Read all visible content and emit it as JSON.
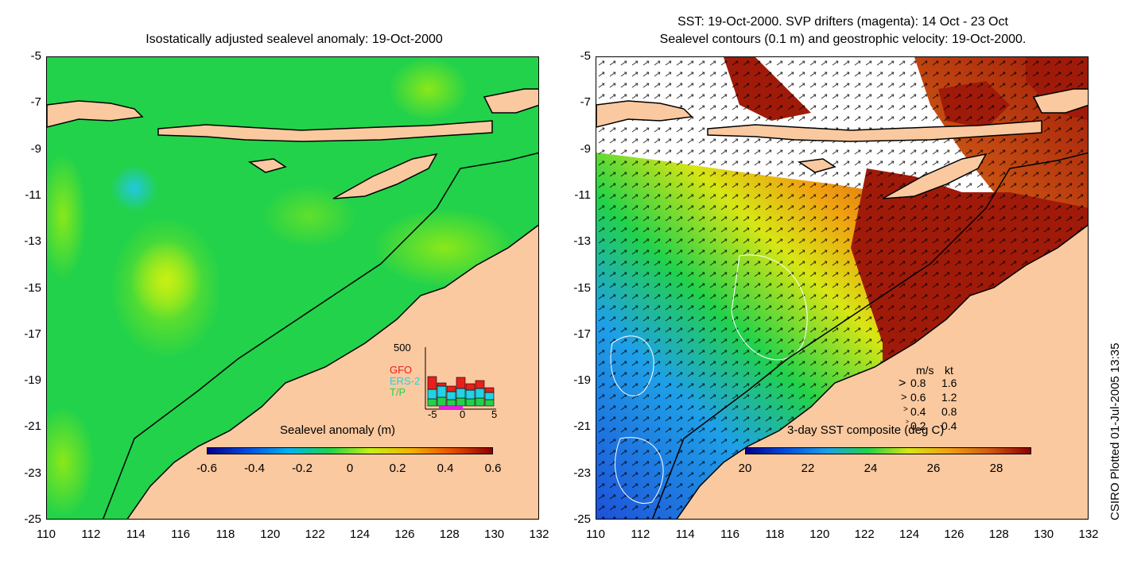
{
  "left_panel": {
    "title": "Isostatically adjusted sealevel anomaly: 19-Oct-2000",
    "y_ticks": [
      "-5",
      "-7",
      "-9",
      "-11",
      "-13",
      "-15",
      "-17",
      "-19",
      "-21",
      "-23",
      "-25"
    ],
    "x_ticks": [
      "110",
      "112",
      "114",
      "116",
      "118",
      "120",
      "122",
      "124",
      "126",
      "128",
      "130",
      "132"
    ],
    "colorbar": {
      "label": "Sealevel anomaly (m)",
      "ticks": [
        "-0.6",
        "-0.4",
        "-0.2",
        "0",
        "0.2",
        "0.4",
        "0.6"
      ]
    },
    "histogram": {
      "ymax_label": "500",
      "x_ticks": [
        "-5",
        "0",
        "5"
      ],
      "legend": [
        {
          "name": "GFO",
          "color": "#e8201c"
        },
        {
          "name": "ERS-2",
          "color": "#22d2e6"
        },
        {
          "name": "T/P",
          "color": "#22d24a"
        }
      ],
      "gfo_values": [
        80,
        20,
        35,
        70,
        40,
        50,
        30
      ],
      "ers_values": [
        60,
        70,
        50,
        60,
        55,
        60,
        45
      ],
      "tp_values": [
        45,
        55,
        40,
        50,
        45,
        50,
        40
      ]
    }
  },
  "right_panel": {
    "title_line1": "SST: 19-Oct-2000. SVP drifters (magenta): 14 Oct - 23 Oct",
    "title_line2": "Sealevel contours (0.1 m) and geostrophic velocity: 19-Oct-2000.",
    "y_ticks": [
      "-5",
      "-7",
      "-9",
      "-11",
      "-13",
      "-15",
      "-17",
      "-19",
      "-21",
      "-23",
      "-25"
    ],
    "x_ticks": [
      "110",
      "112",
      "114",
      "116",
      "118",
      "120",
      "122",
      "124",
      "126",
      "128",
      "130",
      "132"
    ],
    "colorbar": {
      "label": "3-day SST composite (deg C)",
      "ticks": [
        "20",
        "22",
        "24",
        "26",
        "28"
      ]
    },
    "velocity_legend": {
      "header_ms": "m/s",
      "header_kt": "kt",
      "rows": [
        {
          "ms": "0.8",
          "kt": "1.6"
        },
        {
          "ms": "0.6",
          "kt": "1.2"
        },
        {
          "ms": "0.4",
          "kt": "0.8"
        },
        {
          "ms": "0.2",
          "kt": "0.4"
        }
      ]
    }
  },
  "credit": "CSIRO Plotted 01-Jul-2005 13:35",
  "colors": {
    "land": "#fac9a0",
    "ocean_green": "#22d24a",
    "sst_warm": "#a01a0a",
    "sst_cold": "#2060e0"
  }
}
